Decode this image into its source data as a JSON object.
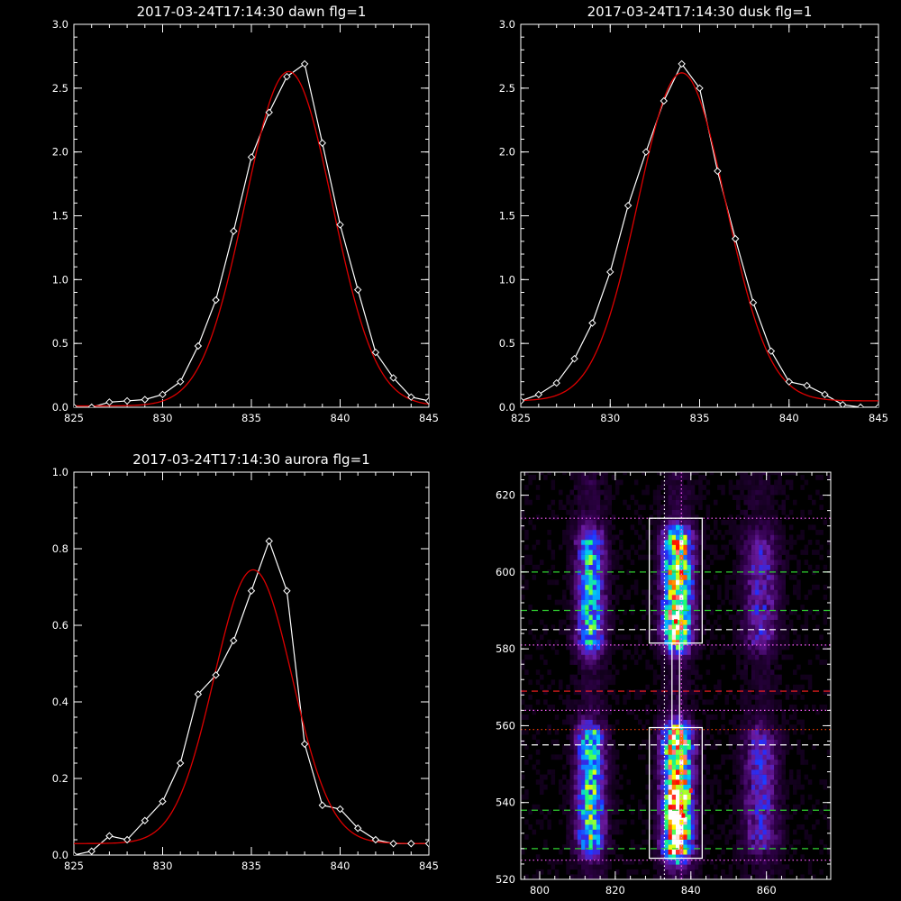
{
  "chart_data": [
    {
      "type": "line",
      "title": "2017-03-24T17:14:30 dawn flg=1",
      "xlim": [
        825,
        845
      ],
      "ylim": [
        0,
        3
      ],
      "x_ticks": [
        "825",
        "830",
        "835",
        "840",
        "845"
      ],
      "y_ticks": [
        "0.0",
        "0.5",
        "1.0",
        "1.5",
        "2.0",
        "2.5",
        "3.0"
      ],
      "colors": {
        "data": "#ffffff",
        "fit": "#dd0000",
        "frame": "#ffffff"
      },
      "series": [
        {
          "role": "data",
          "marker": "diamond",
          "color": "#ffffff",
          "x": [
            825,
            826,
            827,
            828,
            829,
            830,
            831,
            832,
            833,
            834,
            835,
            836,
            837,
            838,
            839,
            840,
            841,
            842,
            843,
            844,
            845
          ],
          "y": [
            0.0,
            0.0,
            0.04,
            0.05,
            0.06,
            0.1,
            0.2,
            0.48,
            0.84,
            1.38,
            1.96,
            2.31,
            2.59,
            2.69,
            2.07,
            1.43,
            0.92,
            0.43,
            0.23,
            0.08,
            0.05
          ]
        },
        {
          "role": "fit",
          "marker": "none",
          "color": "#dd0000",
          "gaussian": {
            "amplitude": 2.62,
            "center": 837.1,
            "sigma": 2.45,
            "offset": 0.01
          }
        }
      ]
    },
    {
      "type": "line",
      "title": "2017-03-24T17:14:30 dusk flg=1",
      "xlim": [
        825,
        845
      ],
      "ylim": [
        0,
        3
      ],
      "x_ticks": [
        "825",
        "830",
        "835",
        "840",
        "845"
      ],
      "y_ticks": [
        "0.0",
        "0.5",
        "1.0",
        "1.5",
        "2.0",
        "2.5",
        "3.0"
      ],
      "colors": {
        "data": "#ffffff",
        "fit": "#dd0000",
        "frame": "#ffffff"
      },
      "series": [
        {
          "role": "data",
          "marker": "diamond",
          "color": "#ffffff",
          "x": [
            825,
            826,
            827,
            828,
            829,
            830,
            831,
            832,
            833,
            834,
            835,
            836,
            837,
            838,
            839,
            840,
            841,
            842,
            843,
            844,
            845
          ],
          "y": [
            0.05,
            0.1,
            0.19,
            0.38,
            0.66,
            1.06,
            1.58,
            2.0,
            2.4,
            2.69,
            2.5,
            1.85,
            1.32,
            0.82,
            0.44,
            0.2,
            0.17,
            0.1,
            0.02,
            0.0,
            0.0
          ]
        },
        {
          "role": "fit",
          "marker": "none",
          "color": "#dd0000",
          "gaussian": {
            "amplitude": 2.57,
            "center": 834.0,
            "sigma": 2.45,
            "offset": 0.05
          }
        }
      ]
    },
    {
      "type": "line",
      "title": "2017-03-24T17:14:30 aurora flg=1",
      "xlim": [
        825,
        845
      ],
      "ylim": [
        0,
        1
      ],
      "x_ticks": [
        "825",
        "830",
        "835",
        "840",
        "845"
      ],
      "y_ticks": [
        "0.0",
        "0.2",
        "0.4",
        "0.6",
        "0.8",
        "1.0"
      ],
      "colors": {
        "data": "#ffffff",
        "fit": "#dd0000",
        "frame": "#ffffff"
      },
      "series": [
        {
          "role": "data",
          "marker": "diamond",
          "color": "#ffffff",
          "x": [
            825,
            826,
            827,
            828,
            829,
            830,
            831,
            832,
            833,
            834,
            835,
            836,
            837,
            838,
            839,
            840,
            841,
            842,
            843,
            844,
            845
          ],
          "y": [
            0.0,
            0.01,
            0.05,
            0.04,
            0.09,
            0.14,
            0.24,
            0.42,
            0.47,
            0.56,
            0.69,
            0.82,
            0.69,
            0.29,
            0.13,
            0.12,
            0.07,
            0.04,
            0.03,
            0.03,
            0.03
          ]
        },
        {
          "role": "fit",
          "marker": "none",
          "color": "#dd0000",
          "gaussian": {
            "amplitude": 0.715,
            "center": 835.1,
            "sigma": 2.2,
            "offset": 0.03
          }
        }
      ]
    },
    {
      "type": "heatmap",
      "title": "",
      "xlim": [
        795,
        877
      ],
      "ylim": [
        520,
        626
      ],
      "x_ticks": [
        800,
        820,
        840,
        860
      ],
      "y_ticks": [
        520,
        540,
        560,
        580,
        600,
        620
      ],
      "colorscale": [
        "#000000",
        "#30004a",
        "#6a1aa0",
        "#2030ff",
        "#00c0ff",
        "#20ff70",
        "#ffff00",
        "#ff0000",
        "#ffffff"
      ],
      "sources": [
        {
          "x": 813,
          "sx": 2.4,
          "y0": 582,
          "y1": 607,
          "sy": 3,
          "amp": 0.42
        },
        {
          "x": 813,
          "sx": 2.4,
          "y0": 530,
          "y1": 556,
          "sy": 3,
          "amp": 0.5
        },
        {
          "x": 836,
          "sx": 2.6,
          "y0": 583,
          "y1": 607,
          "sy": 3,
          "amp": 0.72
        },
        {
          "x": 836,
          "sx": 2.6,
          "y0": 528,
          "y1": 556,
          "sy": 3,
          "amp": 0.82
        },
        {
          "x": 858,
          "sx": 3.0,
          "y0": 583,
          "y1": 606,
          "sy": 3,
          "amp": 0.2
        },
        {
          "x": 858,
          "sx": 3.0,
          "y0": 530,
          "y1": 555,
          "sy": 3,
          "amp": 0.22
        },
        {
          "x": 836,
          "sx": 1.4,
          "y0": 534,
          "y1": 541,
          "sy": 2,
          "amp": 0.35
        },
        {
          "x": 835.5,
          "sx": 1.2,
          "y0": 585,
          "y1": 590,
          "sy": 2,
          "amp": 0.2
        }
      ],
      "overlays": {
        "boxes": [
          {
            "x0": 829,
            "x1": 843,
            "y0": 581.5,
            "y1": 614,
            "color": "#ffffff"
          },
          {
            "x0": 829,
            "x1": 843,
            "y0": 525.5,
            "y1": 559.5,
            "color": "#ffffff"
          },
          {
            "x0": 835,
            "x1": 837,
            "y0": 559.5,
            "y1": 581.5,
            "color": "#ffffff"
          }
        ],
        "hlines": [
          {
            "y": 614,
            "style": "dotted",
            "color": "#ff60ff"
          },
          {
            "y": 600,
            "style": "dashed",
            "color": "#30d030"
          },
          {
            "y": 590,
            "style": "dashed",
            "color": "#30d030"
          },
          {
            "y": 585,
            "style": "dashed",
            "color": "#ffffff"
          },
          {
            "y": 581,
            "style": "dotted",
            "color": "#ff60ff"
          },
          {
            "y": 569,
            "style": "dashed",
            "color": "#ff2020"
          },
          {
            "y": 564,
            "style": "dotted",
            "color": "#ff60ff"
          },
          {
            "y": 559,
            "style": "dotted",
            "color": "#ff4000"
          },
          {
            "y": 555,
            "style": "dashed",
            "color": "#ffffff"
          },
          {
            "y": 538,
            "style": "dashed",
            "color": "#30d030"
          },
          {
            "y": 528,
            "style": "dashed",
            "color": "#30d030"
          },
          {
            "y": 525,
            "style": "dotted",
            "color": "#ff60ff"
          }
        ],
        "vlines": [
          {
            "x": 833,
            "style": "dotted",
            "color": "#ffffff"
          },
          {
            "x": 837.5,
            "style": "dotted",
            "color": "#ff60ff"
          }
        ]
      }
    }
  ]
}
